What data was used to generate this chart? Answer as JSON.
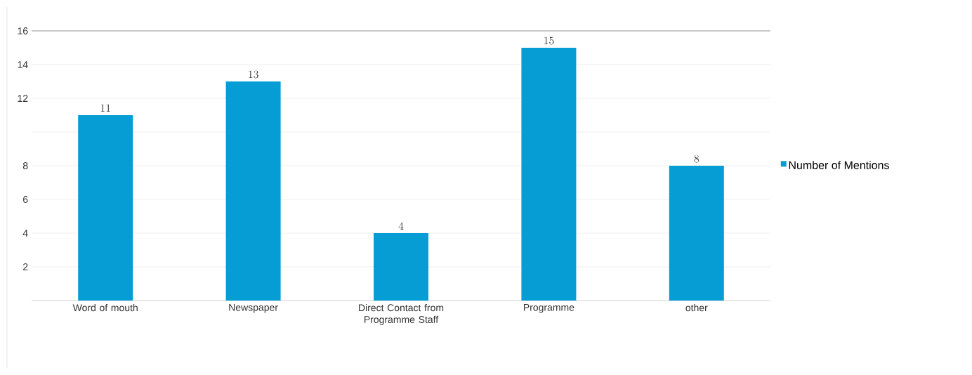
{
  "chart_data": {
    "type": "bar",
    "categories": [
      "Word of mouth",
      "Newspaper",
      "Direct Contact from Programme  Staff",
      "Programme",
      "other"
    ],
    "series": [
      {
        "name": "Number of Mentions",
        "color": "#069dd4",
        "values": [
          11,
          13,
          4,
          15,
          8
        ]
      }
    ],
    "ylim": [
      0,
      16
    ],
    "yticks": [
      {
        "value": 0,
        "label": null
      },
      2,
      4,
      6,
      8,
      {
        "value": 10,
        "label": null
      },
      12,
      14,
      16
    ],
    "grid": "y",
    "legend": "right",
    "data_labels": true
  }
}
